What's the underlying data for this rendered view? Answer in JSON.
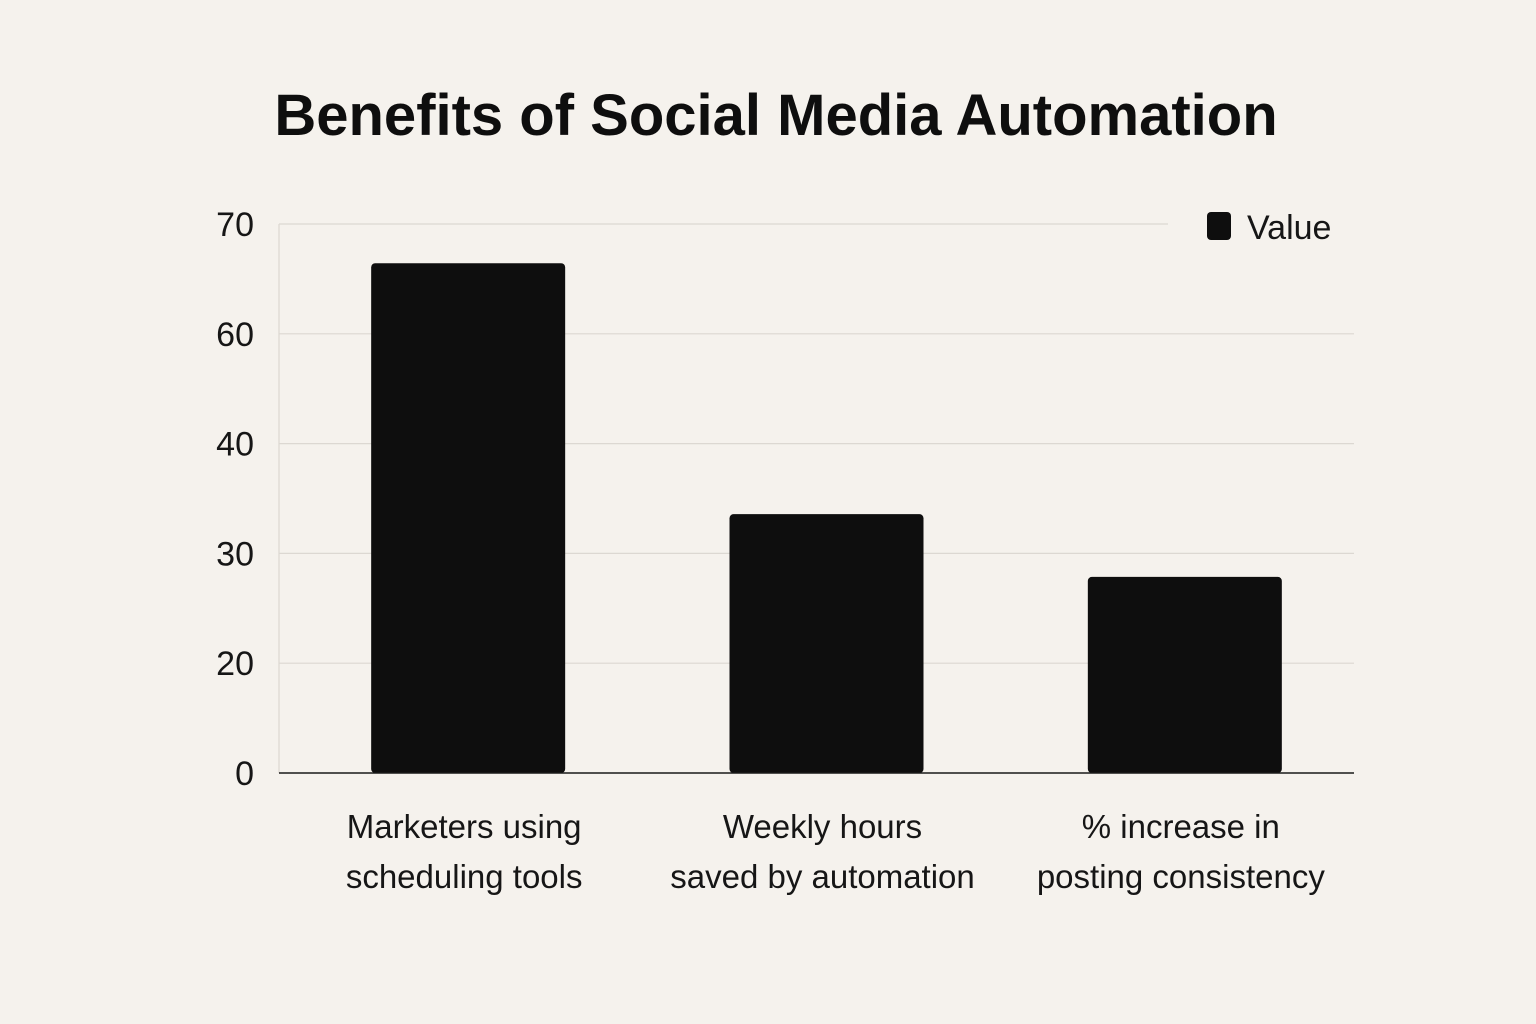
{
  "chart_data": {
    "type": "bar",
    "title": "Benefits of Social Media Automation",
    "categories": [
      [
        "Marketers using",
        "scheduling tools"
      ],
      [
        "Weekly hours",
        "saved by automation"
      ],
      [
        "% increase in",
        "posting consistency"
      ]
    ],
    "series": [
      {
        "name": "Value",
        "values": [
          65,
          33,
          25
        ]
      }
    ],
    "yticks": [
      0,
      20,
      30,
      40,
      60,
      70
    ],
    "ylim": [
      0,
      70
    ],
    "xlabel": "",
    "ylabel": "",
    "grid": true,
    "legend_position": "top-right",
    "bar_color": "#0e0e0e",
    "grid_color": "#dcd8d2",
    "axis_color": "#1a1a1a",
    "background": "#f5f2ed"
  }
}
